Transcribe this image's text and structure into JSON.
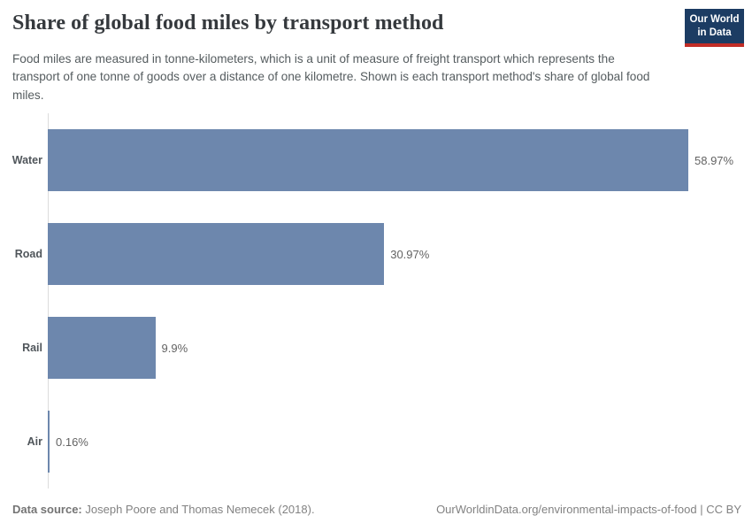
{
  "header": {
    "title": "Share of global food miles by transport method",
    "subtitle": "Food miles are measured in tonne-kilometers, which is a unit of measure of freight transport which represents the transport of one tonne of goods over a distance of one kilometre. Shown is each transport method's share of global food miles.",
    "logo": {
      "line1": "Our World",
      "line2": "in Data"
    }
  },
  "chart_data": {
    "type": "bar",
    "orientation": "horizontal",
    "title": "Share of global food miles by transport method",
    "categories": [
      "Water",
      "Road",
      "Rail",
      "Air"
    ],
    "values": [
      58.97,
      30.97,
      9.9,
      0.16
    ],
    "value_labels": [
      "58.97%",
      "30.97%",
      "9.9%",
      "0.16%"
    ],
    "unit": "%",
    "xlim": [
      0,
      58.97
    ],
    "grid": false,
    "legend": "none",
    "bar_color": "#6d87ad",
    "axis_line_color": "#dcdcdc"
  },
  "footer": {
    "source_label": "Data source:",
    "source_text": "Joseph Poore and Thomas Nemecek (2018).",
    "link_text": "OurWorldinData.org/environmental-impacts-of-food",
    "separator": "|",
    "license": "CC BY"
  }
}
